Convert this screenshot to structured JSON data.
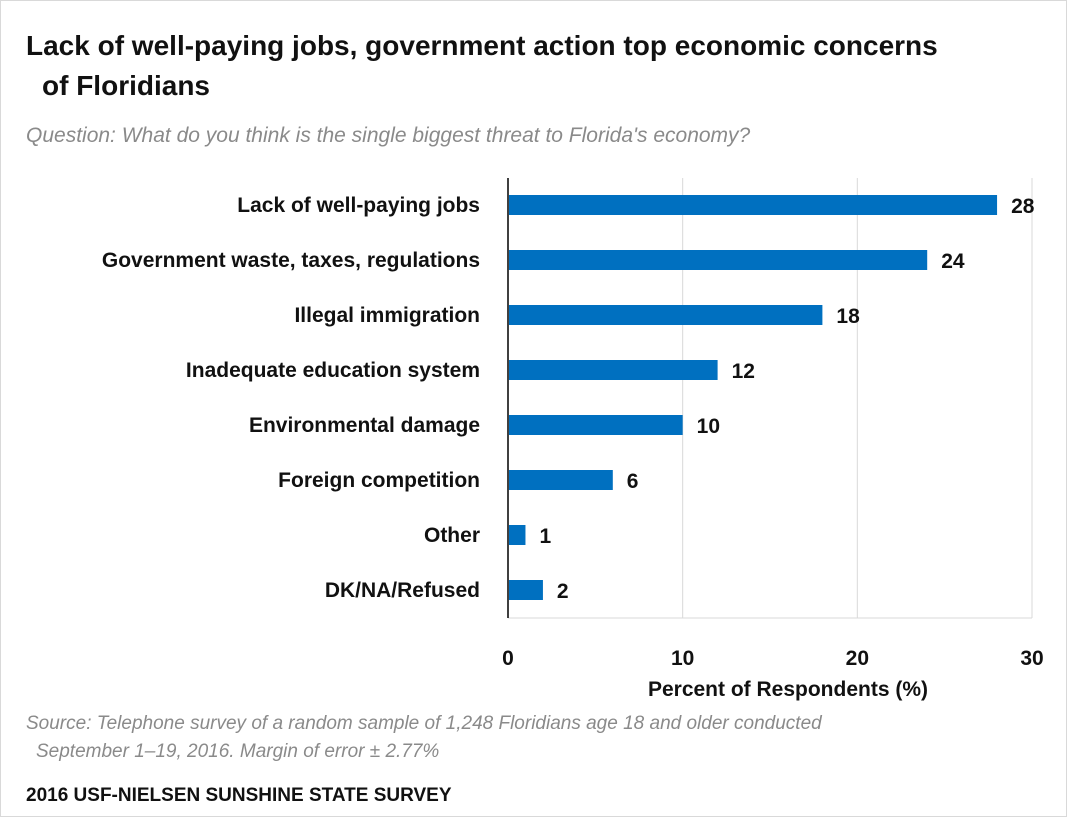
{
  "chart_data": {
    "type": "bar",
    "orientation": "horizontal",
    "title_line1": "Lack of well-paying jobs, government action top economic concerns",
    "title_line2": "of Floridians",
    "subtitle": "Question: What do you think is the single biggest threat to Florida's economy?",
    "categories": [
      "Lack of well-paying jobs",
      "Government waste, taxes, regulations",
      "Illegal immigration",
      "Inadequate education system",
      "Environmental damage",
      "Foreign competition",
      "Other",
      "DK/NA/Refused"
    ],
    "values": [
      28,
      24,
      18,
      12,
      10,
      6,
      1,
      2
    ],
    "xlabel": "Percent of Respondents (%)",
    "xlim": [
      0,
      30
    ],
    "xticks": [
      0,
      10,
      20,
      30
    ],
    "grid": true,
    "bar_color": "#0070c0",
    "gridline_color": "#d9d9d9"
  },
  "source_line1": "Source: Telephone survey of a random sample of 1,248 Floridians age 18 and older conducted",
  "source_line2": "September 1–19, 2016. Margin of error ± 2.77%",
  "footer": "2016 USF-NIELSEN SUNSHINE STATE SURVEY"
}
